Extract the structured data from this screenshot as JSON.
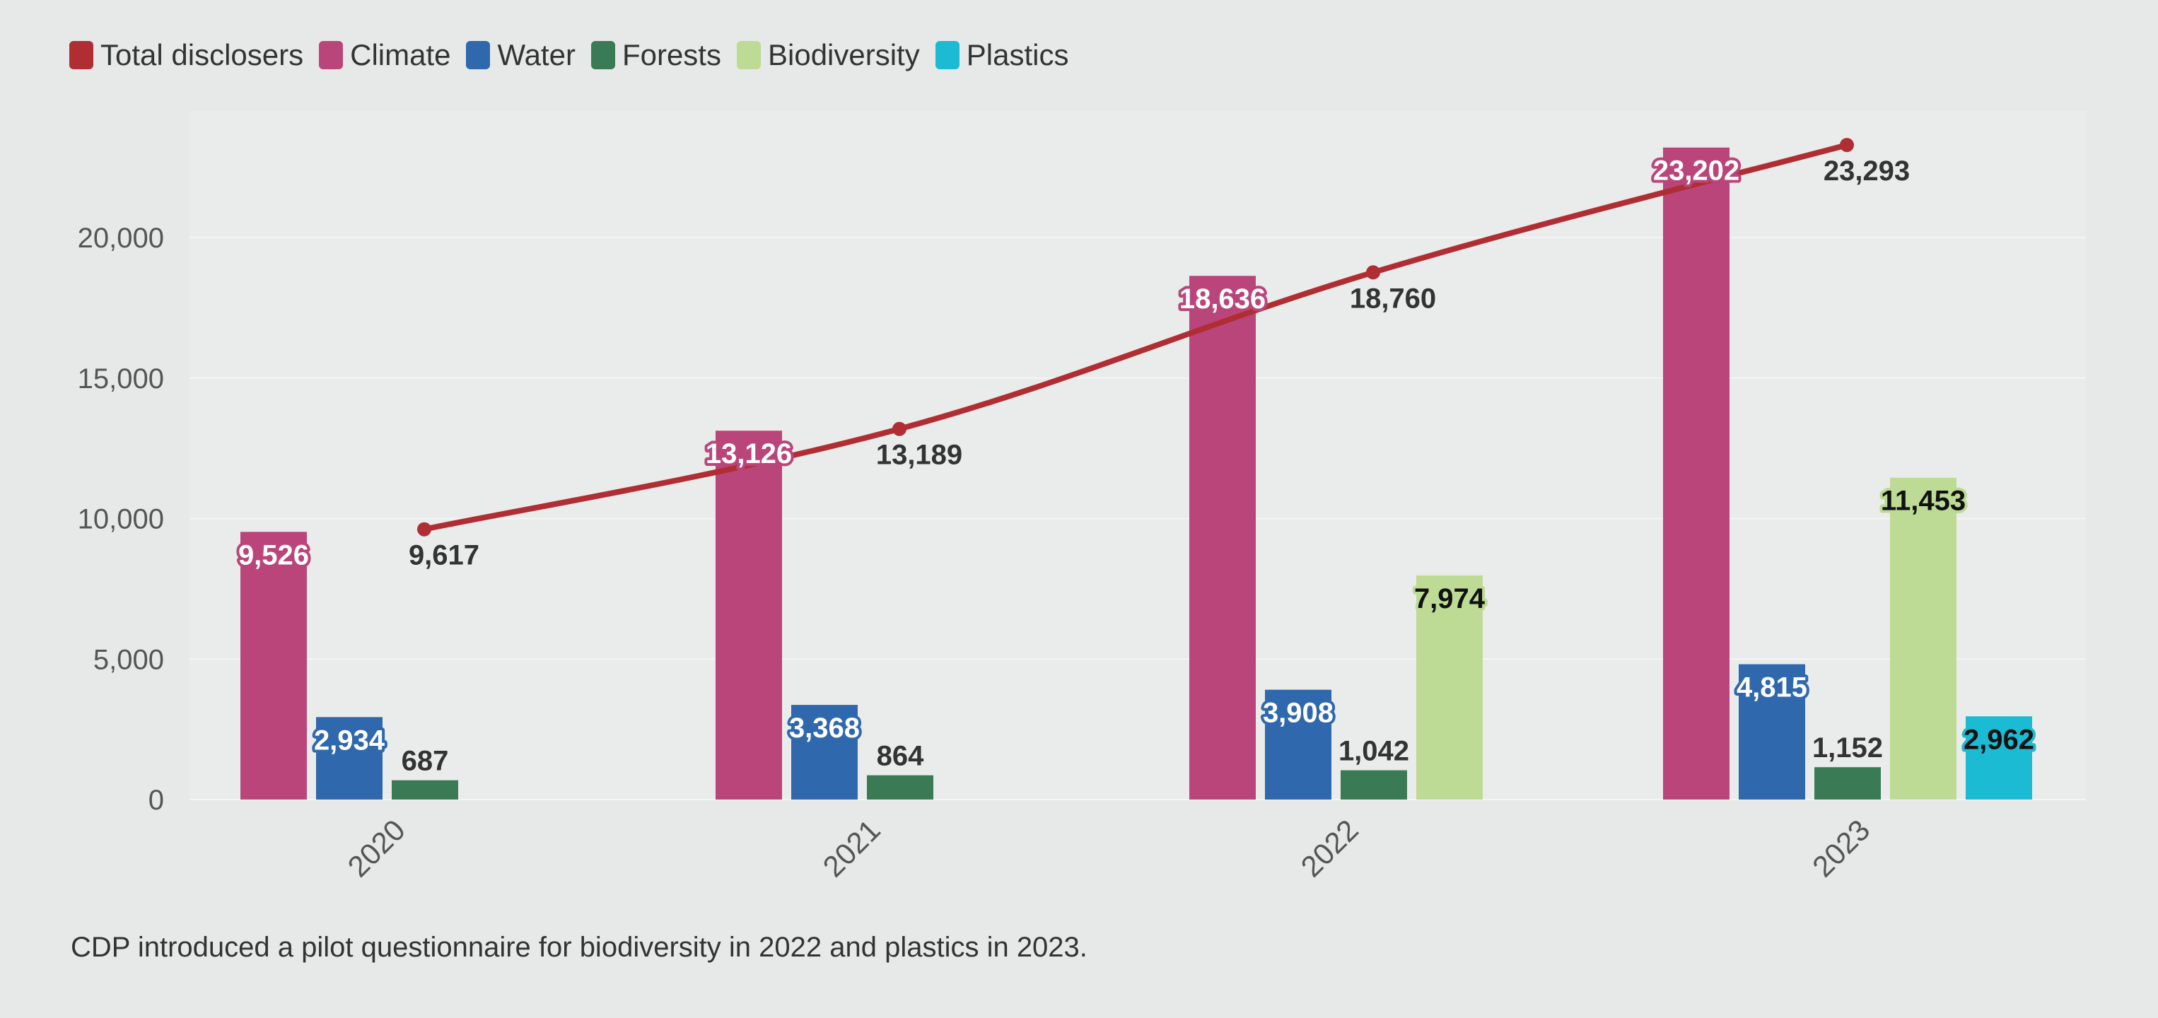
{
  "chart_data": {
    "type": "bar",
    "categories": [
      "2020",
      "2021",
      "2022",
      "2023"
    ],
    "series": [
      {
        "name": "Climate",
        "color": "#ba457a",
        "values": [
          9526,
          13126,
          18636,
          23202
        ],
        "labels": [
          "9,526",
          "13,126",
          "18,636",
          "23,202"
        ]
      },
      {
        "name": "Water",
        "color": "#2f68ad",
        "values": [
          2934,
          3368,
          3908,
          4815
        ],
        "labels": [
          "2,934",
          "3,368",
          "3,908",
          "4,815"
        ]
      },
      {
        "name": "Forests",
        "color": "#3a7b55",
        "values": [
          687,
          864,
          1042,
          1152
        ],
        "labels": [
          "687",
          "864",
          "1,042",
          "1,152"
        ]
      },
      {
        "name": "Biodiversity",
        "color": "#bedb96",
        "values": [
          null,
          null,
          7974,
          11453
        ],
        "labels": [
          "",
          "",
          "7,974",
          "11,453"
        ]
      },
      {
        "name": "Plastics",
        "color": "#1bbbd3",
        "values": [
          null,
          null,
          null,
          2962
        ],
        "labels": [
          "",
          "",
          "",
          "2,962"
        ]
      }
    ],
    "line": {
      "name": "Total disclosers",
      "color": "#b02e33",
      "values": [
        9617,
        13189,
        18760,
        23293
      ],
      "labels": [
        "9,617",
        "13,189",
        "18,760",
        "23,293"
      ]
    },
    "legend_order": [
      "Total disclosers",
      "Climate",
      "Water",
      "Forests",
      "Biodiversity",
      "Plastics"
    ],
    "yticks": [
      0,
      5000,
      10000,
      15000,
      20000
    ],
    "ytick_labels": [
      "0",
      "5,000",
      "10,000",
      "15,000",
      "20,000"
    ],
    "ylim": [
      0,
      24500
    ],
    "grid": true,
    "legend_position": "top-left"
  },
  "footnote": "CDP introduced a pilot questionnaire for biodiversity in 2022 and plastics in 2023."
}
